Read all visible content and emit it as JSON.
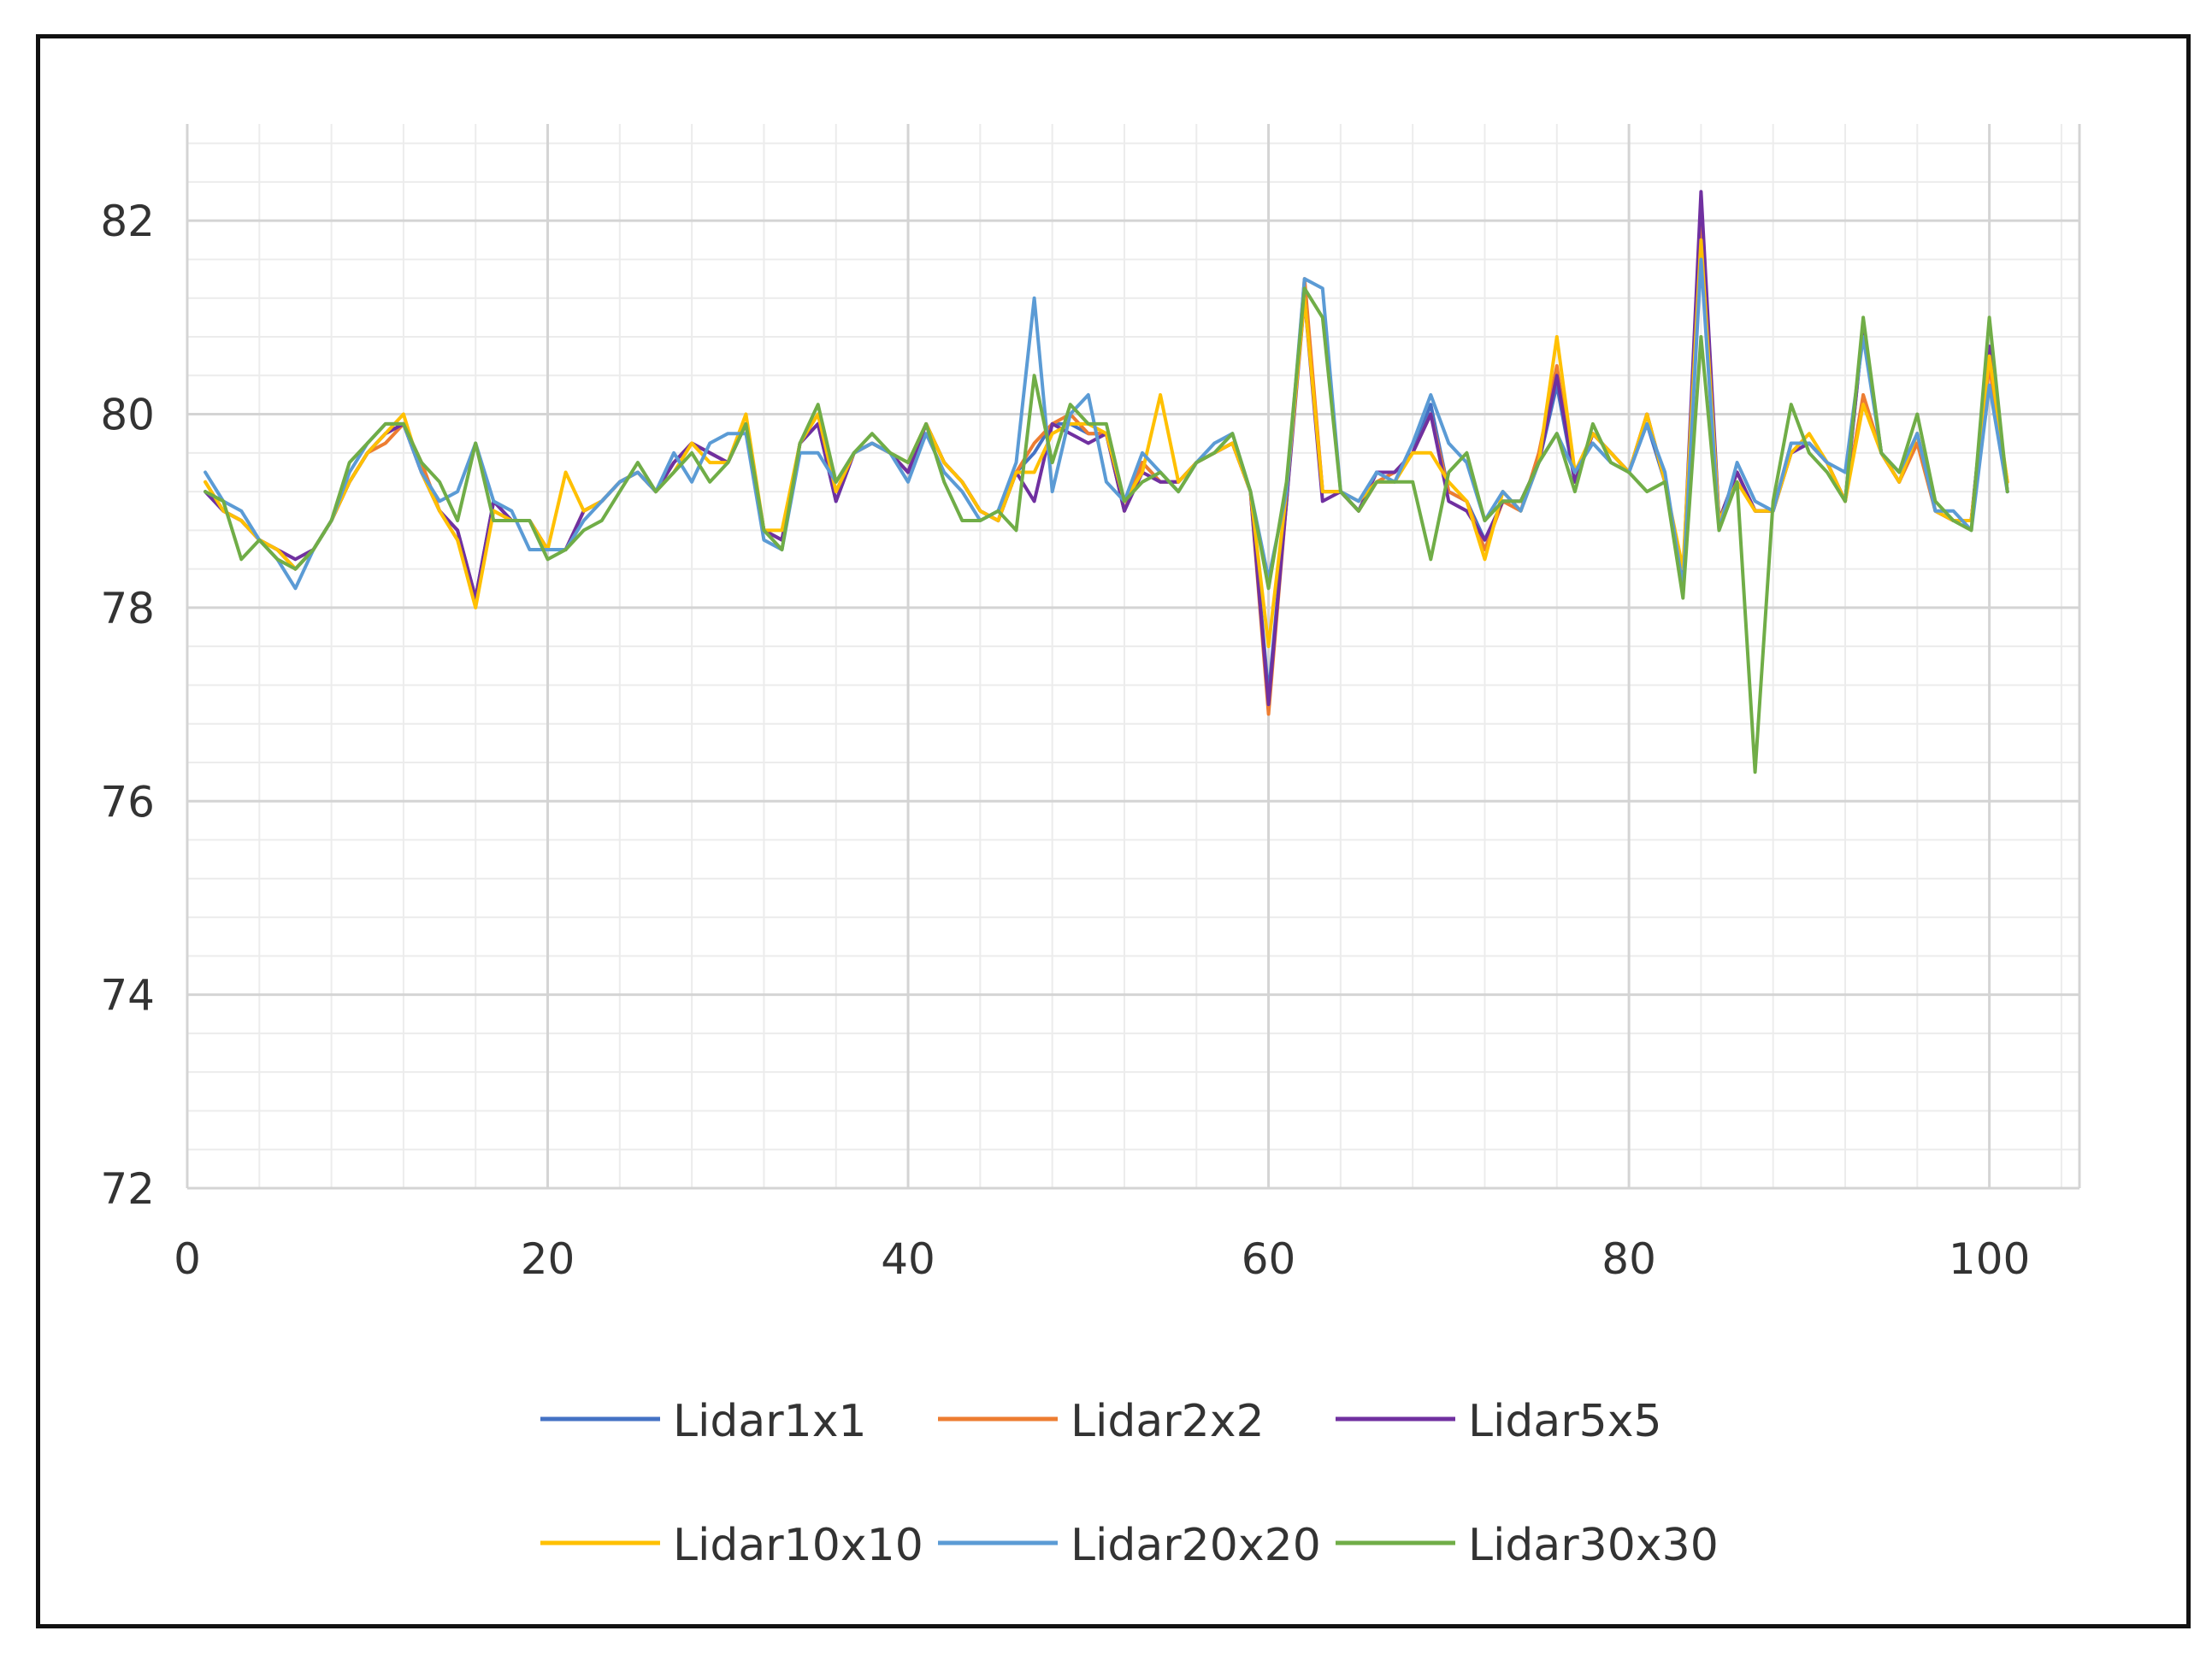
{
  "chart_data": {
    "type": "line",
    "title": "",
    "xlabel": "",
    "ylabel": "",
    "xlim": [
      0,
      105
    ],
    "ylim": [
      72,
      83
    ],
    "x_ticks": [
      0,
      20,
      40,
      60,
      80,
      100
    ],
    "y_ticks": [
      72,
      74,
      76,
      78,
      80,
      82
    ],
    "x_tick_labels": [
      "0",
      "20",
      "40",
      "60",
      "80",
      "100"
    ],
    "y_tick_labels": [
      "72",
      "74",
      "76",
      "78",
      "80",
      "82"
    ],
    "grid": "major and minor",
    "legend_position": "bottom",
    "x": [
      1,
      2,
      3,
      4,
      5,
      6,
      7,
      8,
      9,
      10,
      11,
      12,
      13,
      14,
      15,
      16,
      17,
      18,
      19,
      20,
      21,
      22,
      23,
      24,
      25,
      26,
      27,
      28,
      29,
      30,
      31,
      32,
      33,
      34,
      35,
      36,
      37,
      38,
      39,
      40,
      41,
      42,
      43,
      44,
      45,
      46,
      47,
      48,
      49,
      50,
      51,
      52,
      53,
      54,
      55,
      56,
      57,
      58,
      59,
      60,
      61,
      62,
      63,
      64,
      65,
      66,
      67,
      68,
      69,
      70,
      71,
      72,
      73,
      74,
      75,
      76,
      77,
      78,
      79,
      80,
      81,
      82,
      83,
      84,
      85,
      86,
      87,
      88,
      89,
      90,
      91,
      92,
      93,
      94,
      95,
      96,
      97,
      98,
      99,
      100,
      101
    ],
    "series": [
      {
        "name": "Lidar1x1",
        "color": "#4472C4",
        "values": [
          79.2,
          79.0,
          78.9,
          78.7,
          78.6,
          78.4,
          78.6,
          78.9,
          79.3,
          79.6,
          79.8,
          79.9,
          79.4,
          79.0,
          78.8,
          78.1,
          79.1,
          78.9,
          78.9,
          78.6,
          78.6,
          79.0,
          79.1,
          79.3,
          79.4,
          79.2,
          79.5,
          79.7,
          79.6,
          79.5,
          79.9,
          78.8,
          78.7,
          79.7,
          79.9,
          79.1,
          79.6,
          79.7,
          79.6,
          79.4,
          79.9,
          79.5,
          79.3,
          79.0,
          78.9,
          79.4,
          79.6,
          79.9,
          79.9,
          79.8,
          79.8,
          79.0,
          79.5,
          79.3,
          79.3,
          79.5,
          79.6,
          79.7,
          79.2,
          77.1,
          79.1,
          81.3,
          79.2,
          79.2,
          79.0,
          79.4,
          79.4,
          79.6,
          80.1,
          79.2,
          79.1,
          78.7,
          79.1,
          79.1,
          79.5,
          80.3,
          79.3,
          79.8,
          79.6,
          79.4,
          79.9,
          79.3,
          78.3,
          82.1,
          78.9,
          79.4,
          79.0,
          79.0,
          79.6,
          79.7,
          79.5,
          79.1,
          80.9,
          79.6,
          79.3,
          79.8,
          79.0,
          78.9,
          78.9,
          80.7,
          79.2
        ]
      },
      {
        "name": "Lidar2x2",
        "color": "#ED7D31",
        "values": [
          79.3,
          79.0,
          78.9,
          78.7,
          78.6,
          78.4,
          78.6,
          78.9,
          79.3,
          79.6,
          79.7,
          79.9,
          79.5,
          79.0,
          78.7,
          78.1,
          79.0,
          78.9,
          78.9,
          78.6,
          78.6,
          79.0,
          79.1,
          79.3,
          79.4,
          79.2,
          79.5,
          79.7,
          79.6,
          79.5,
          79.9,
          78.8,
          78.7,
          79.7,
          80.0,
          79.2,
          79.6,
          79.7,
          79.6,
          79.4,
          79.9,
          79.5,
          79.3,
          79.0,
          78.9,
          79.4,
          79.7,
          79.9,
          80.0,
          79.8,
          79.8,
          79.0,
          79.5,
          79.3,
          79.3,
          79.5,
          79.6,
          79.7,
          79.2,
          76.9,
          79.1,
          81.4,
          79.2,
          79.2,
          79.0,
          79.3,
          79.4,
          79.6,
          80.0,
          79.2,
          79.1,
          78.6,
          79.1,
          79.0,
          79.6,
          80.5,
          79.3,
          79.8,
          79.6,
          79.4,
          80.0,
          79.3,
          78.3,
          82.0,
          78.9,
          79.4,
          79.0,
          79.0,
          79.7,
          79.7,
          79.5,
          79.1,
          80.2,
          79.6,
          79.3,
          79.7,
          79.0,
          78.9,
          78.9,
          80.5,
          79.3
        ]
      },
      {
        "name": "Lidar5x5",
        "color": "#7030A0",
        "values": [
          79.2,
          79.0,
          78.9,
          78.7,
          78.6,
          78.5,
          78.6,
          78.9,
          79.3,
          79.6,
          79.8,
          79.9,
          79.4,
          79.0,
          78.8,
          78.1,
          79.1,
          78.9,
          78.9,
          78.6,
          78.6,
          79.0,
          79.1,
          79.3,
          79.4,
          79.2,
          79.5,
          79.7,
          79.6,
          79.5,
          79.9,
          78.8,
          78.7,
          79.7,
          79.9,
          79.1,
          79.6,
          79.7,
          79.6,
          79.4,
          79.9,
          79.5,
          79.3,
          79.0,
          78.9,
          79.4,
          79.1,
          79.9,
          79.8,
          79.7,
          79.8,
          79.0,
          79.4,
          79.3,
          79.3,
          79.5,
          79.6,
          79.7,
          79.2,
          77.0,
          79.1,
          81.2,
          79.1,
          79.2,
          79.0,
          79.4,
          79.4,
          79.6,
          80.0,
          79.1,
          79.0,
          78.7,
          79.1,
          79.1,
          79.5,
          80.4,
          79.3,
          79.8,
          79.6,
          79.4,
          80.0,
          79.3,
          78.3,
          82.3,
          78.9,
          79.4,
          79.0,
          79.0,
          79.6,
          79.7,
          79.5,
          79.1,
          80.9,
          79.6,
          79.3,
          79.8,
          79.0,
          78.9,
          78.9,
          80.7,
          79.2
        ]
      },
      {
        "name": "Lidar10x10",
        "color": "#FFC000",
        "values": [
          79.3,
          79.0,
          78.9,
          78.7,
          78.6,
          78.4,
          78.6,
          78.9,
          79.3,
          79.6,
          79.8,
          80.0,
          79.4,
          79.0,
          78.7,
          78.0,
          79.0,
          78.9,
          78.9,
          78.6,
          79.4,
          79.0,
          79.1,
          79.3,
          79.4,
          79.2,
          79.4,
          79.7,
          79.5,
          79.5,
          80.0,
          78.8,
          78.8,
          79.7,
          80.0,
          79.2,
          79.6,
          79.7,
          79.6,
          79.5,
          79.9,
          79.5,
          79.3,
          79.0,
          78.9,
          79.4,
          79.4,
          79.8,
          79.9,
          79.9,
          79.8,
          79.1,
          79.4,
          80.2,
          79.3,
          79.5,
          79.6,
          79.7,
          79.2,
          77.6,
          79.2,
          81.2,
          79.2,
          79.2,
          79.1,
          79.3,
          79.3,
          79.6,
          79.6,
          79.3,
          79.1,
          78.5,
          79.2,
          79.0,
          79.5,
          80.8,
          79.4,
          79.8,
          79.6,
          79.4,
          80.0,
          79.3,
          78.4,
          81.8,
          78.9,
          79.3,
          79.0,
          79.0,
          79.6,
          79.8,
          79.5,
          79.1,
          80.1,
          79.6,
          79.3,
          79.8,
          79.0,
          78.9,
          78.9,
          80.6,
          79.3
        ]
      },
      {
        "name": "Lidar20x20",
        "color": "#5B9BD5",
        "values": [
          79.4,
          79.1,
          79.0,
          78.7,
          78.5,
          78.2,
          78.6,
          78.9,
          79.4,
          79.7,
          79.9,
          79.9,
          79.4,
          79.1,
          79.2,
          79.7,
          79.1,
          79.0,
          78.6,
          78.6,
          78.6,
          78.9,
          79.1,
          79.3,
          79.4,
          79.2,
          79.6,
          79.3,
          79.7,
          79.8,
          79.8,
          78.7,
          78.6,
          79.6,
          79.6,
          79.3,
          79.6,
          79.7,
          79.6,
          79.3,
          79.8,
          79.4,
          79.2,
          78.9,
          79.0,
          79.5,
          81.2,
          79.2,
          80.0,
          80.2,
          79.3,
          79.1,
          79.6,
          79.4,
          79.2,
          79.5,
          79.7,
          79.8,
          79.2,
          78.3,
          79.2,
          81.4,
          81.3,
          79.2,
          79.1,
          79.4,
          79.3,
          79.7,
          80.2,
          79.7,
          79.5,
          78.9,
          79.2,
          79.0,
          79.5,
          79.8,
          79.4,
          79.7,
          79.5,
          79.4,
          79.9,
          79.4,
          78.2,
          81.6,
          78.8,
          79.5,
          79.1,
          79.0,
          79.7,
          79.7,
          79.5,
          79.4,
          80.8,
          79.6,
          79.4,
          79.8,
          79.0,
          79.0,
          78.8,
          80.3,
          79.2
        ]
      },
      {
        "name": "Lidar30x30",
        "color": "#70AD47",
        "values": [
          79.2,
          79.1,
          78.5,
          78.7,
          78.5,
          78.4,
          78.6,
          78.9,
          79.5,
          79.7,
          79.9,
          79.9,
          79.5,
          79.3,
          78.9,
          79.7,
          78.9,
          78.9,
          78.9,
          78.5,
          78.6,
          78.8,
          78.9,
          79.2,
          79.5,
          79.2,
          79.4,
          79.6,
          79.3,
          79.5,
          79.9,
          78.8,
          78.6,
          79.7,
          80.1,
          79.3,
          79.6,
          79.8,
          79.6,
          79.5,
          79.9,
          79.3,
          78.9,
          78.9,
          79.0,
          78.8,
          80.4,
          79.5,
          80.1,
          79.9,
          79.9,
          79.1,
          79.3,
          79.4,
          79.2,
          79.5,
          79.6,
          79.8,
          79.2,
          78.2,
          79.3,
          81.3,
          81.0,
          79.2,
          79.0,
          79.3,
          79.3,
          79.3,
          78.5,
          79.4,
          79.6,
          78.9,
          79.1,
          79.1,
          79.5,
          79.8,
          79.2,
          79.9,
          79.5,
          79.4,
          79.2,
          79.3,
          78.1,
          80.8,
          78.8,
          79.3,
          76.3,
          79.1,
          80.1,
          79.6,
          79.4,
          79.1,
          81.0,
          79.6,
          79.4,
          80.0,
          79.1,
          78.9,
          78.8,
          81.0,
          79.2
        ]
      }
    ]
  }
}
